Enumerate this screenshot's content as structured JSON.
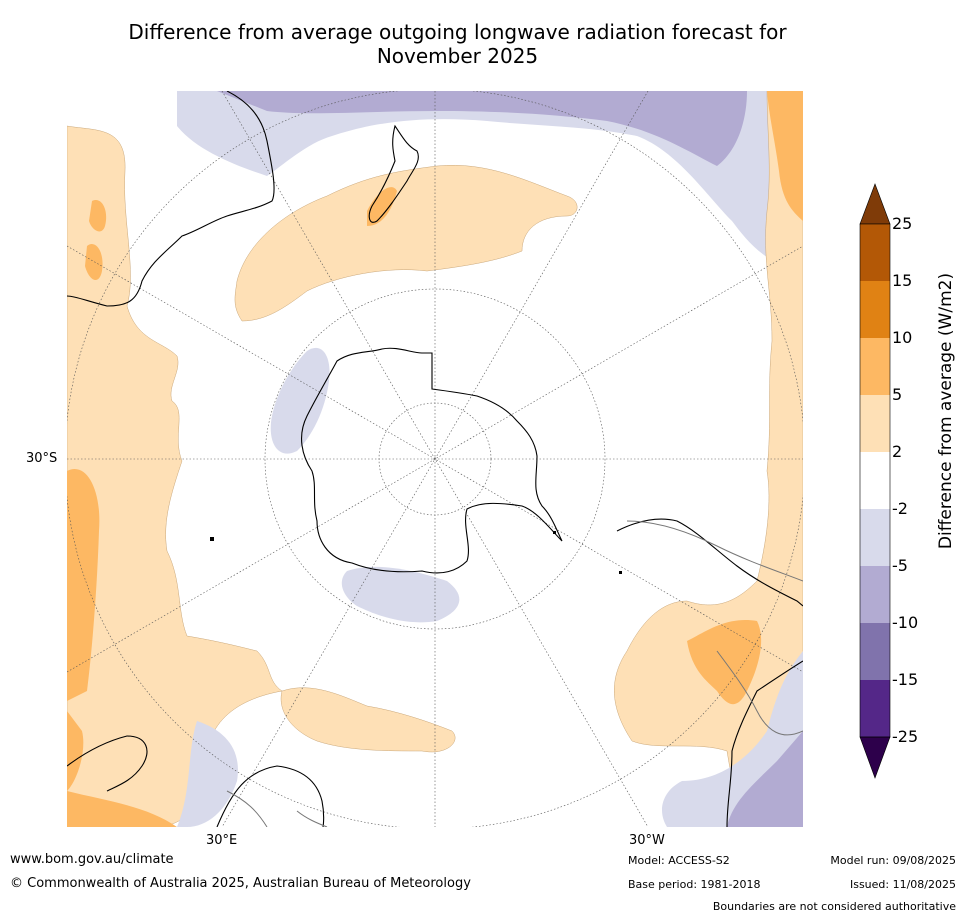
{
  "title_line1": "Difference from average outgoing longwave radiation forecast for",
  "title_line2": "November 2025",
  "axes": {
    "lat_label": "30°S",
    "lon_labels": [
      "30°E",
      "30°W"
    ]
  },
  "colorbar": {
    "title": "Difference from average (W/m2)",
    "tick_labels": [
      "25",
      "15",
      "10",
      "5",
      "2",
      "-2",
      "-5",
      "-10",
      "-15",
      "-25"
    ],
    "colors": {
      "above_25": "#7f3b08",
      "15_to_25": "#b35806",
      "10_to_15": "#e08214",
      "5_to_10": "#fdb863",
      "2_to_5": "#fee0b6",
      "neutral": "#ffffff",
      "minus5_to_minus2": "#d8daeb",
      "minus10_to_minus5": "#b2abd2",
      "minus15_to_minus10": "#8073ac",
      "minus25_to_minus15": "#542788",
      "below_minus25": "#2d004b"
    }
  },
  "footer": {
    "website": "www.bom.gov.au/climate",
    "copyright": "© Commonwealth of Australia 2025, Australian Bureau of Meteorology",
    "model": "Model: ACCESS-S2",
    "base_period": "Base period: 1981-2018",
    "model_run": "Model run: 09/08/2025",
    "issued": "Issued: 11/08/2025",
    "disclaimer": "Boundaries are not considered authoritative"
  }
}
